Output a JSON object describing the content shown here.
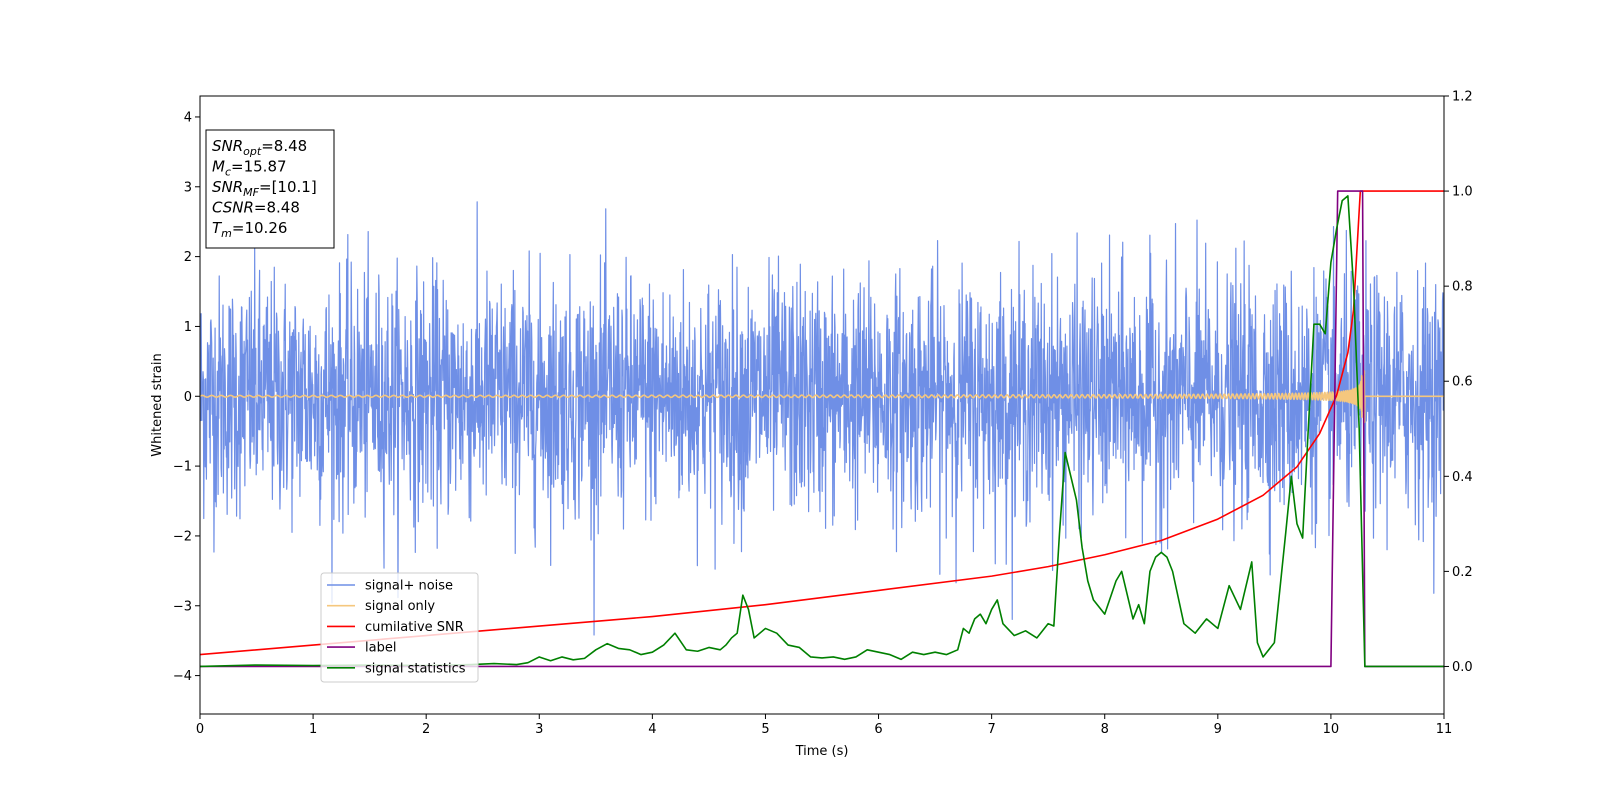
{
  "chart_data": {
    "type": "line",
    "xlabel": "Time (s)",
    "ylabel": "Whitened strain",
    "xlim": [
      0,
      11
    ],
    "ylim": [
      -4.55,
      4.3
    ],
    "ylim_right": [
      -0.1,
      1.2
    ],
    "x_ticks": [
      0,
      1,
      2,
      3,
      4,
      5,
      6,
      7,
      8,
      9,
      10,
      11
    ],
    "y_ticks": [
      -4,
      -3,
      -2,
      -1,
      0,
      1,
      2,
      3,
      4
    ],
    "y_right_ticks": [
      0.0,
      0.2,
      0.4,
      0.6,
      0.8,
      1.0,
      1.2
    ],
    "grid": false,
    "legend_position": "lower-left",
    "annotation": {
      "lines": [
        {
          "base": "SNR",
          "sub": "opt",
          "value": "=8.48"
        },
        {
          "base": "M",
          "sub": "c",
          "value": "=15.87"
        },
        {
          "base": "SNR",
          "sub": "MF",
          "value": "=[10.1]"
        },
        {
          "base": "CSNR",
          "sub": "",
          "value": "=8.48"
        },
        {
          "base": "T",
          "sub": "m",
          "value": "=10.26"
        }
      ]
    },
    "series": [
      {
        "name": "signal+ noise",
        "axis": "left",
        "color": "#6f8fe6",
        "noise_sigma": 0.85,
        "noise_samples": 3300,
        "t_end": 11
      },
      {
        "name": "signal only",
        "axis": "left",
        "color": "#f5c77e",
        "chirp_start": 0,
        "merger_time": 10.26,
        "amplitude_start": 0.012,
        "amplitude_peak": 0.75,
        "end_time": 10.3
      },
      {
        "name": "cumilative SNR",
        "axis": "right",
        "color": "#ff0000",
        "x": [
          0,
          1,
          2,
          3,
          4,
          5,
          6,
          7,
          7.5,
          8,
          8.5,
          9,
          9.4,
          9.7,
          9.9,
          10.05,
          10.15,
          10.2,
          10.26,
          11
        ],
        "values": [
          0.025,
          0.045,
          0.065,
          0.085,
          0.105,
          0.13,
          0.16,
          0.19,
          0.21,
          0.235,
          0.265,
          0.31,
          0.36,
          0.42,
          0.49,
          0.57,
          0.66,
          0.75,
          1.0,
          1.0
        ]
      },
      {
        "name": "label",
        "axis": "right",
        "color": "#800080",
        "x": [
          0,
          10.0,
          10.06,
          10.28,
          10.3,
          11
        ],
        "values": [
          0,
          0,
          1,
          1,
          0,
          0
        ]
      },
      {
        "name": "signal statistics",
        "axis": "right",
        "color": "#008000",
        "x": [
          0,
          0.5,
          1,
          1.5,
          2,
          2.4,
          2.6,
          2.8,
          2.9,
          3.0,
          3.1,
          3.2,
          3.3,
          3.4,
          3.5,
          3.6,
          3.7,
          3.8,
          3.9,
          4.0,
          4.1,
          4.2,
          4.3,
          4.4,
          4.5,
          4.6,
          4.65,
          4.7,
          4.75,
          4.8,
          4.85,
          4.9,
          5.0,
          5.1,
          5.2,
          5.3,
          5.4,
          5.5,
          5.6,
          5.7,
          5.8,
          5.9,
          6.0,
          6.1,
          6.2,
          6.3,
          6.4,
          6.5,
          6.6,
          6.7,
          6.75,
          6.8,
          6.85,
          6.9,
          6.95,
          7.0,
          7.05,
          7.1,
          7.2,
          7.3,
          7.4,
          7.5,
          7.55,
          7.6,
          7.65,
          7.7,
          7.75,
          7.8,
          7.85,
          7.9,
          8.0,
          8.1,
          8.15,
          8.2,
          8.25,
          8.3,
          8.35,
          8.4,
          8.45,
          8.5,
          8.55,
          8.6,
          8.7,
          8.8,
          8.9,
          9.0,
          9.1,
          9.2,
          9.3,
          9.35,
          9.4,
          9.5,
          9.6,
          9.65,
          9.7,
          9.75,
          9.8,
          9.85,
          9.9,
          9.95,
          10.0,
          10.05,
          10.1,
          10.15,
          10.2,
          10.25,
          10.3,
          10.35,
          10.4,
          11.0
        ],
        "values": [
          0.0,
          0.003,
          0.002,
          0.003,
          0.002,
          0.004,
          0.006,
          0.004,
          0.008,
          0.02,
          0.012,
          0.02,
          0.014,
          0.017,
          0.035,
          0.048,
          0.038,
          0.035,
          0.025,
          0.03,
          0.045,
          0.07,
          0.035,
          0.032,
          0.04,
          0.035,
          0.045,
          0.06,
          0.07,
          0.15,
          0.12,
          0.06,
          0.08,
          0.07,
          0.045,
          0.04,
          0.02,
          0.018,
          0.02,
          0.015,
          0.02,
          0.035,
          0.03,
          0.025,
          0.015,
          0.03,
          0.025,
          0.03,
          0.025,
          0.035,
          0.08,
          0.07,
          0.1,
          0.11,
          0.09,
          0.12,
          0.14,
          0.09,
          0.065,
          0.075,
          0.06,
          0.09,
          0.085,
          0.28,
          0.45,
          0.4,
          0.35,
          0.25,
          0.18,
          0.14,
          0.11,
          0.18,
          0.2,
          0.15,
          0.1,
          0.13,
          0.09,
          0.2,
          0.23,
          0.24,
          0.23,
          0.2,
          0.09,
          0.07,
          0.1,
          0.08,
          0.17,
          0.12,
          0.22,
          0.05,
          0.02,
          0.05,
          0.28,
          0.4,
          0.3,
          0.27,
          0.5,
          0.72,
          0.72,
          0.7,
          0.85,
          0.92,
          0.98,
          0.99,
          0.8,
          0.5,
          0.0,
          0.0,
          0.0,
          0.0
        ]
      }
    ]
  }
}
